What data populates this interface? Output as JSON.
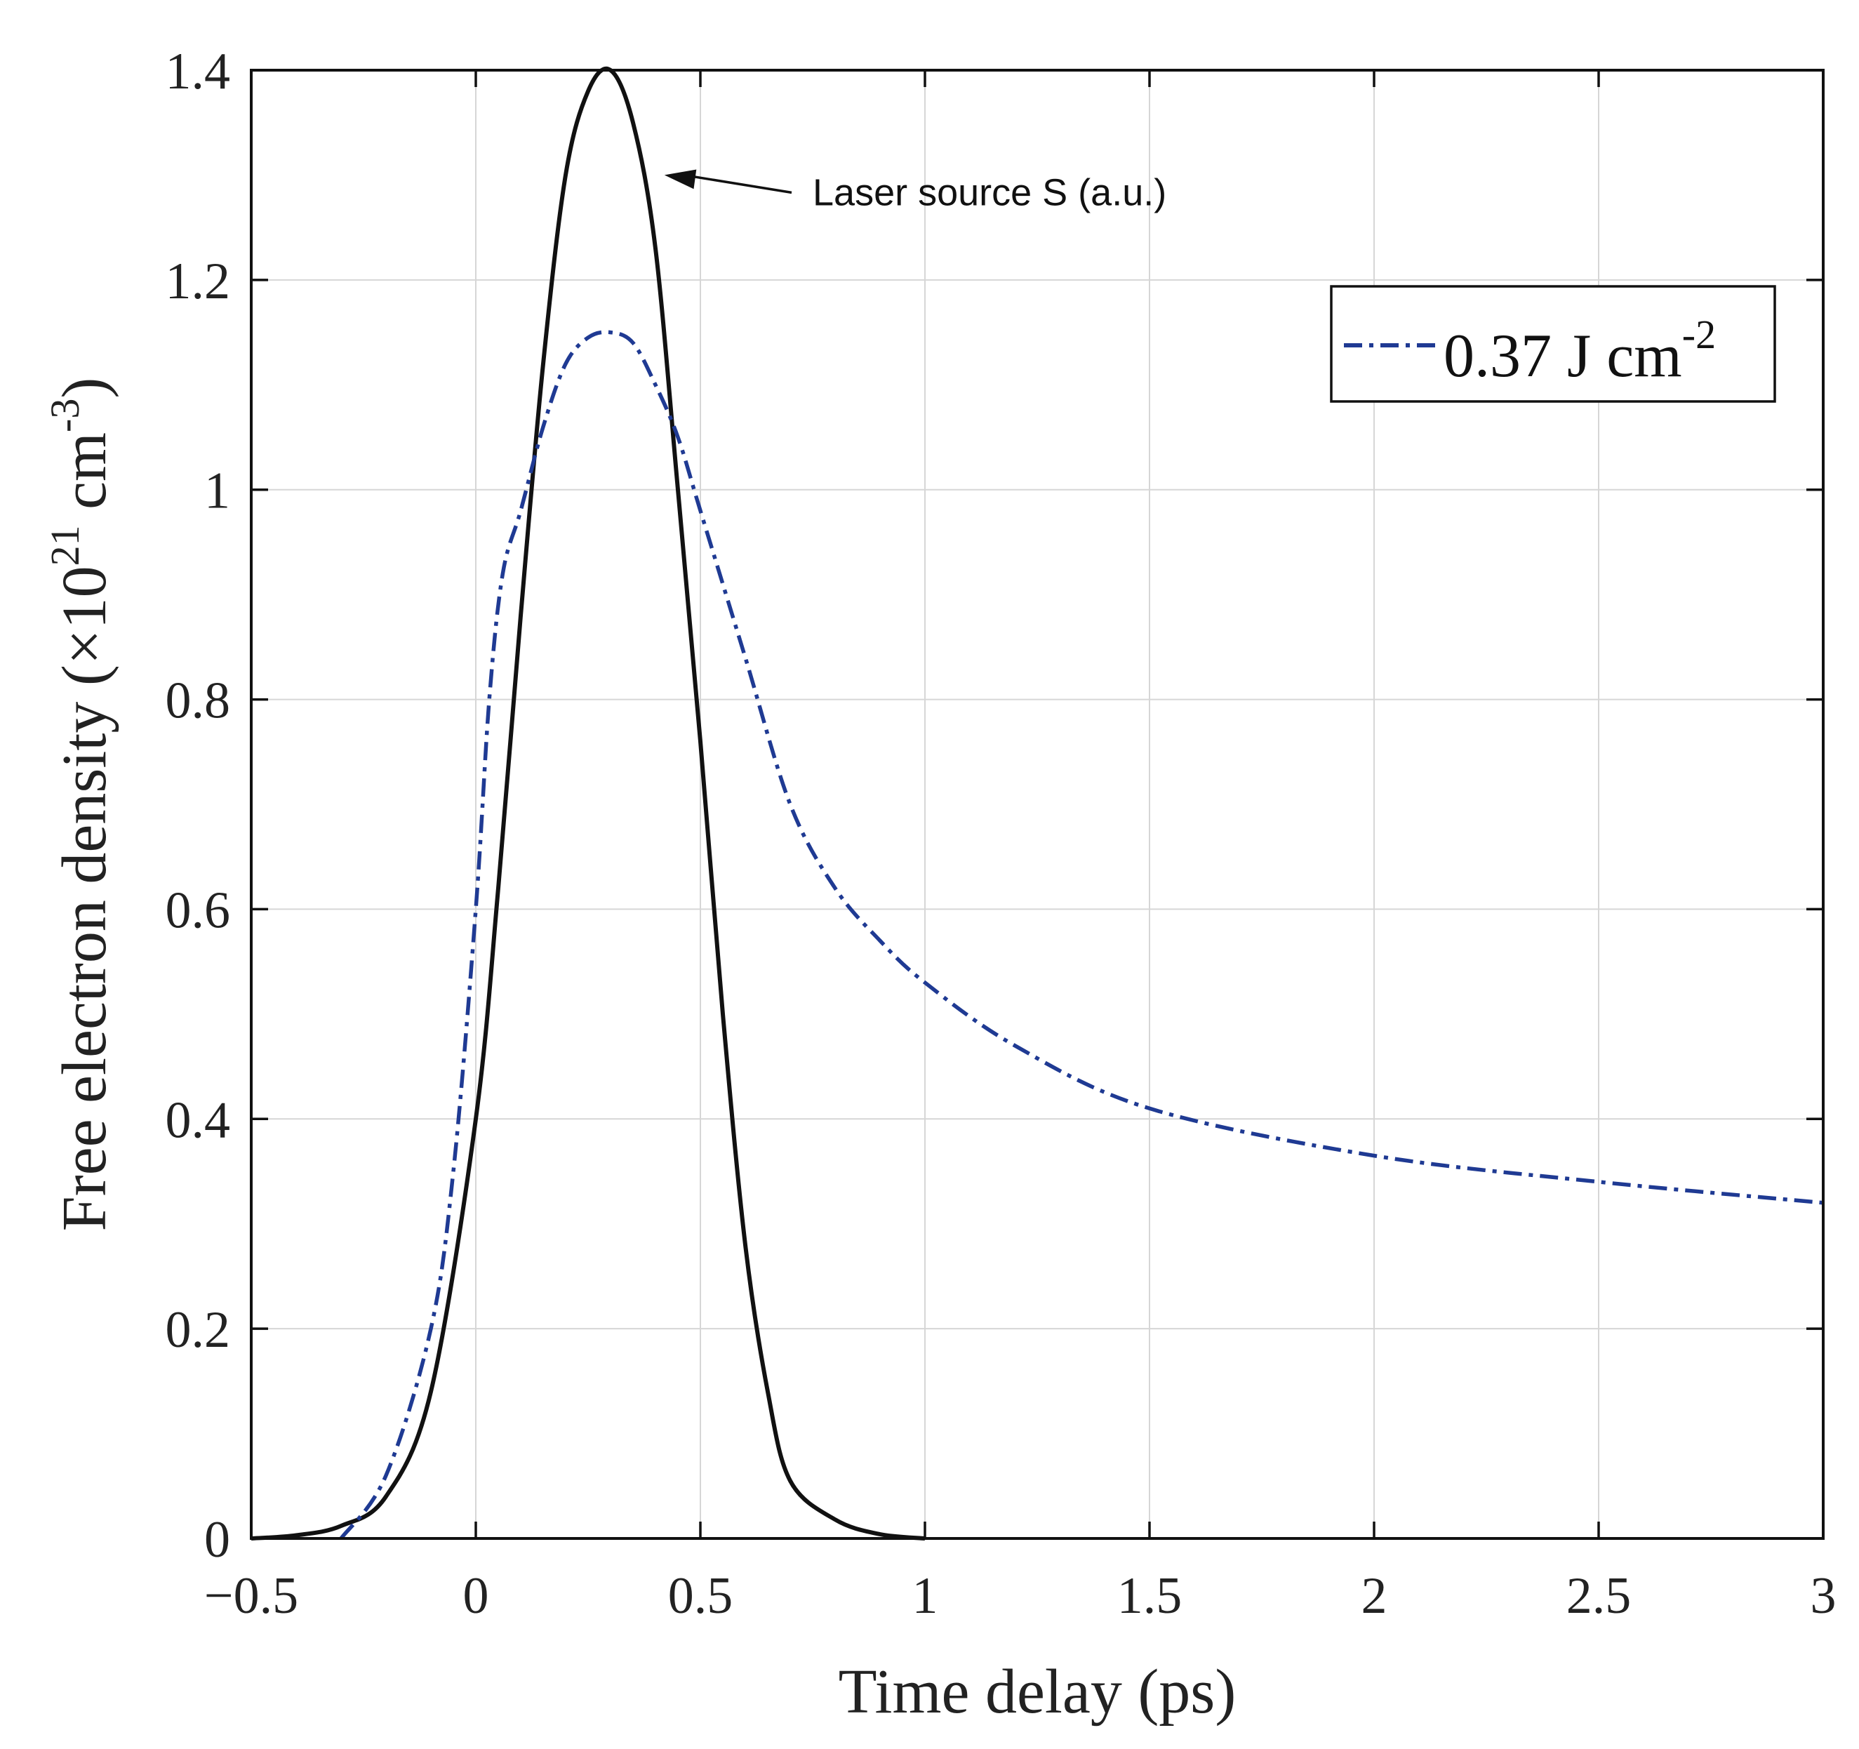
{
  "chart_data": {
    "type": "line",
    "title": "",
    "xlabel": "Time delay (ps)",
    "ylabel": "Free electron density (×10^21 cm^-3)",
    "ylabel_parts": {
      "main": "Free electron density (",
      "times": "×",
      "base": "10",
      "exp1": "21",
      "unit": " cm",
      "exp2": "-3",
      "close": ")"
    },
    "xlim": [
      -0.5,
      3
    ],
    "ylim": [
      0,
      1.4
    ],
    "grid": true,
    "x_ticks": [
      -0.5,
      0,
      0.5,
      1,
      1.5,
      2,
      2.5,
      3
    ],
    "x_tick_labels": [
      "−0.5",
      "0",
      "0.5",
      "1",
      "1.5",
      "2",
      "2.5",
      "3"
    ],
    "y_ticks": [
      0,
      0.2,
      0.4,
      0.6,
      0.8,
      1.0,
      1.2,
      1.4
    ],
    "y_tick_labels": [
      "0",
      "0.2",
      "0.4",
      "0.6",
      "0.8",
      "1",
      "1.2",
      "1.4"
    ],
    "legend": {
      "placement": "top-right",
      "label": "0.37 J cm",
      "exponent": "-2"
    },
    "annotation": {
      "text": "Laser source S (a.u.)",
      "target": [
        0.42,
        1.3
      ],
      "text_at": [
        0.75,
        1.29
      ]
    },
    "series": [
      {
        "name": "Laser source S (a.u.)",
        "style": "solid",
        "color": "#111111",
        "x": [
          -0.5,
          -0.4,
          -0.3,
          -0.2,
          -0.1,
          0.0,
          0.05,
          0.1,
          0.15,
          0.2,
          0.25,
          0.3,
          0.35,
          0.4,
          0.45,
          0.5,
          0.55,
          0.6,
          0.65,
          0.7,
          0.8,
          0.9,
          1.0
        ],
        "values": [
          0.0,
          0.003,
          0.012,
          0.04,
          0.14,
          0.4,
          0.62,
          0.88,
          1.12,
          1.3,
          1.38,
          1.4,
          1.35,
          1.23,
          1.0,
          0.76,
          0.5,
          0.28,
          0.14,
          0.055,
          0.018,
          0.004,
          0.0
        ]
      },
      {
        "name": "0.37 J cm^-2",
        "style": "dashdot",
        "color": "#1f3a93",
        "x": [
          -0.3,
          -0.2,
          -0.1,
          -0.05,
          0.0,
          0.03,
          0.06,
          0.1,
          0.15,
          0.2,
          0.25,
          0.3,
          0.35,
          0.4,
          0.45,
          0.5,
          0.6,
          0.7,
          0.8,
          0.9,
          1.0,
          1.2,
          1.5,
          2.0,
          2.5,
          3.0
        ],
        "values": [
          0.0,
          0.06,
          0.2,
          0.35,
          0.6,
          0.8,
          0.92,
          0.98,
          1.06,
          1.12,
          1.145,
          1.15,
          1.14,
          1.1,
          1.05,
          0.98,
          0.84,
          0.7,
          0.62,
          0.57,
          0.53,
          0.47,
          0.41,
          0.365,
          0.34,
          0.32
        ]
      }
    ]
  }
}
